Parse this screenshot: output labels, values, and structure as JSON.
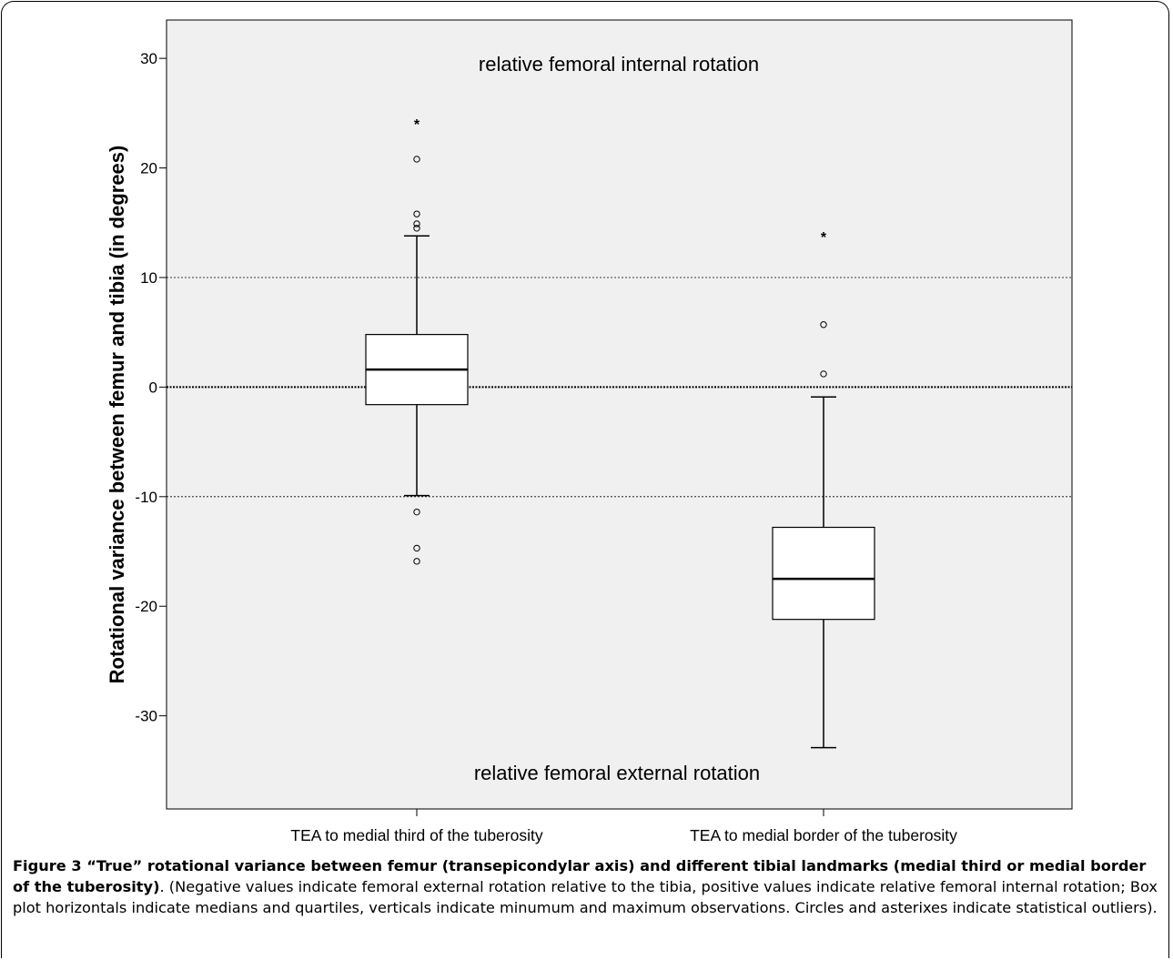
{
  "chart_data": {
    "type": "box",
    "ylabel": "Rotational variance between femur and tibia (in degrees)",
    "ylim": [
      -38.5,
      33.5
    ],
    "yticks": [
      30,
      20,
      10,
      0,
      -10,
      -20,
      -30
    ],
    "reference_lines": [
      {
        "y": 10,
        "style": "dotted"
      },
      {
        "y": 0,
        "style": "dotted-bold"
      },
      {
        "y": -10,
        "style": "dotted"
      }
    ],
    "annotations": {
      "top": "relative femoral internal rotation",
      "bottom": "relative femoral external rotation"
    },
    "categories": [
      "TEA to medial third of the tuberosity",
      "TEA to medial border of the tuberosity"
    ],
    "boxes": [
      {
        "category": "TEA to medial third of the tuberosity",
        "whisker_low": -9.9,
        "q1": -1.6,
        "median": 1.6,
        "q3": 4.8,
        "whisker_high": 13.8,
        "outliers_circle": [
          -11.4,
          -14.7,
          -15.9,
          14.5,
          14.9,
          15.8,
          20.8
        ],
        "outliers_star": [
          24.1
        ]
      },
      {
        "category": "TEA to medial border of the tuberosity",
        "whisker_low": -32.9,
        "q1": -21.2,
        "median": -17.5,
        "q3": -12.8,
        "whisker_high": -0.9,
        "outliers_circle": [
          1.2,
          5.7
        ],
        "outliers_star": [
          13.8
        ]
      }
    ],
    "colors": {
      "plot_background": "#f0f0f0",
      "box_fill": "#ffffff",
      "line": "#000000"
    }
  },
  "caption": {
    "title": "Figure 3 “True” rotational variance between femur (transepicondylar axis) and different tibial landmarks (medial third or medial border of the tuberosity)",
    "body": ". (Negative values indicate femoral external rotation relative to the tibia, positive values indicate relative femoral internal rotation; Box plot horizontals indicate medians and quartiles, verticals indicate minumum and maximum observations. Circles and asterixes indicate statistical outliers)."
  }
}
